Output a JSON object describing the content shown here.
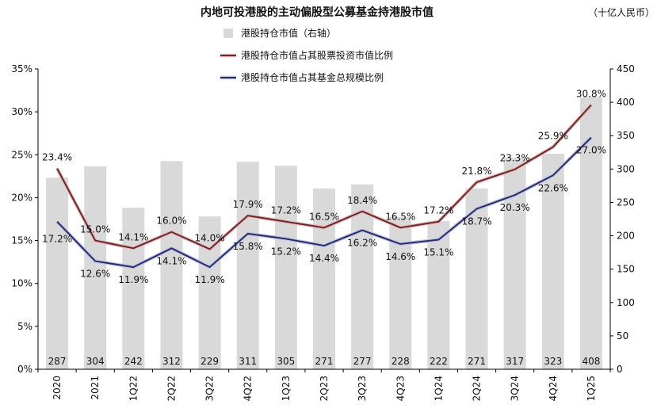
{
  "chart_data": {
    "type": "bar+line",
    "title": "内地可投港股的主动偏股型公募基金持港股市值",
    "unit_note": "（十亿人民币）",
    "categories": [
      "2020",
      "2021",
      "1Q22",
      "2Q22",
      "3Q22",
      "4Q22",
      "1Q23",
      "2Q23",
      "3Q23",
      "4Q23",
      "1Q24",
      "2Q24",
      "3Q24",
      "4Q24",
      "1Q25"
    ],
    "left_axis": {
      "min": 0,
      "max": 35,
      "step": 5,
      "format": "percent"
    },
    "right_axis": {
      "min": 0,
      "max": 450,
      "step": 50
    },
    "series": [
      {
        "name": "港股持仓市值（右轴）",
        "kind": "bar",
        "axis": "right",
        "color": "#d9d9d9",
        "values": [
          287,
          304,
          242,
          312,
          229,
          311,
          305,
          271,
          277,
          228,
          222,
          271,
          317,
          323,
          408
        ],
        "labels": [
          "287",
          "304",
          "242",
          "312",
          "229",
          "311",
          "305",
          "271",
          "277",
          "228",
          "222",
          "271",
          "317",
          "323",
          "408"
        ]
      },
      {
        "name": "港股持仓市值占其股票投资市值比例",
        "kind": "line",
        "axis": "left",
        "color": "#8b1a1a",
        "values": [
          23.4,
          15.0,
          14.1,
          16.0,
          14.0,
          17.9,
          17.2,
          16.5,
          18.4,
          16.5,
          17.2,
          21.8,
          23.3,
          25.9,
          30.8
        ],
        "labels": [
          "23.4%",
          "15.0%",
          "14.1%",
          "16.0%",
          "14.0%",
          "17.9%",
          "17.2%",
          "16.5%",
          "18.4%",
          "16.5%",
          "17.2%",
          "21.8%",
          "23.3%",
          "25.9%",
          "30.8%"
        ]
      },
      {
        "name": "港股持仓市值占其基金总规模比例",
        "kind": "line",
        "axis": "left",
        "color": "#1f2a8a",
        "values": [
          17.2,
          12.6,
          11.9,
          14.1,
          11.9,
          15.8,
          15.2,
          14.4,
          16.2,
          14.6,
          15.1,
          18.7,
          20.3,
          22.6,
          27.0
        ],
        "labels": [
          "17.2%",
          "12.6%",
          "11.9%",
          "14.1%",
          "11.9%",
          "15.8%",
          "15.2%",
          "14.4%",
          "16.2%",
          "14.6%",
          "15.1%",
          "18.7%",
          "20.3%",
          "22.6%",
          "27.0%"
        ]
      }
    ],
    "legend_position": "top-center",
    "grid": false
  }
}
